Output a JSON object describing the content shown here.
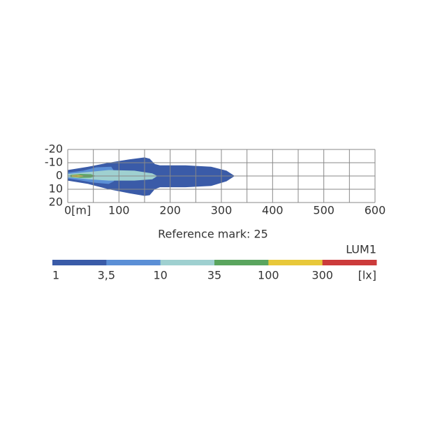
{
  "chart_data": {
    "type": "isolux",
    "xlim": [
      0,
      600
    ],
    "ylim": [
      -20,
      20
    ],
    "y_inverted": true,
    "xticks": [
      {
        "value": 0,
        "label": "0[m]"
      },
      100,
      200,
      300,
      400,
      500,
      600
    ],
    "yticks": [
      -20,
      -10,
      0,
      10,
      20
    ],
    "x_minor_gridlines": [
      50,
      150,
      250,
      350,
      450,
      550
    ],
    "grid": true,
    "contours": [
      {
        "color": "#3a5ba8",
        "x": [
          0,
          40,
          80,
          120,
          150,
          160,
          170,
          180,
          230,
          280,
          310,
          326,
          310,
          280,
          230,
          180,
          170,
          160,
          150,
          120,
          80,
          40,
          0
        ],
        "y": [
          -4.5,
          -7,
          -10,
          -12.5,
          -14,
          -13,
          -9,
          -8,
          -8,
          -7,
          -4,
          0,
          4,
          7.5,
          8.5,
          8.5,
          10,
          14.5,
          15,
          13,
          10,
          6,
          3.5
        ]
      },
      {
        "color": "#5b8fd6",
        "x": [
          0,
          30,
          55,
          85,
          90,
          95,
          90,
          80,
          50,
          20,
          0
        ],
        "y": [
          -2.5,
          -4,
          -6.5,
          -7,
          -4,
          0,
          4,
          6,
          5,
          3,
          2
        ]
      },
      {
        "color": "#9fd0d0",
        "x": [
          0,
          40,
          80,
          130,
          165,
          175,
          165,
          130,
          80,
          40,
          0
        ],
        "y": [
          -1.5,
          -3,
          -4.5,
          -4,
          -2,
          0,
          2.5,
          3.5,
          3.5,
          2.5,
          1
        ]
      },
      {
        "color": "#5aa55e",
        "x": [
          5,
          25,
          45,
          55,
          45,
          25,
          5
        ],
        "y": [
          -0.8,
          -1.5,
          -1.3,
          0,
          1.2,
          1.4,
          0.8
        ]
      },
      {
        "color": "#e8c83a",
        "x": [
          8,
          20,
          30,
          32,
          30,
          20,
          8
        ],
        "y": [
          -0.5,
          -0.8,
          -0.3,
          0,
          0.4,
          0.8,
          0.5
        ]
      },
      {
        "color": "#cc3b3b",
        "x": [
          10,
          18,
          22,
          18,
          10
        ],
        "y": [
          -0.2,
          -0.3,
          0,
          0.3,
          0.2
        ]
      }
    ],
    "annotation": "Reference mark: 25",
    "colorbar": {
      "title": "LUM1",
      "levels": [
        1,
        {
          "value": 3.5,
          "label": "3,5"
        },
        10,
        35,
        100,
        300
      ],
      "unit": "[lx]",
      "colors": [
        "#3a5ba8",
        "#5b8fd6",
        "#9fd0d0",
        "#5aa55e",
        "#e8c83a",
        "#cc3b3b"
      ]
    }
  }
}
